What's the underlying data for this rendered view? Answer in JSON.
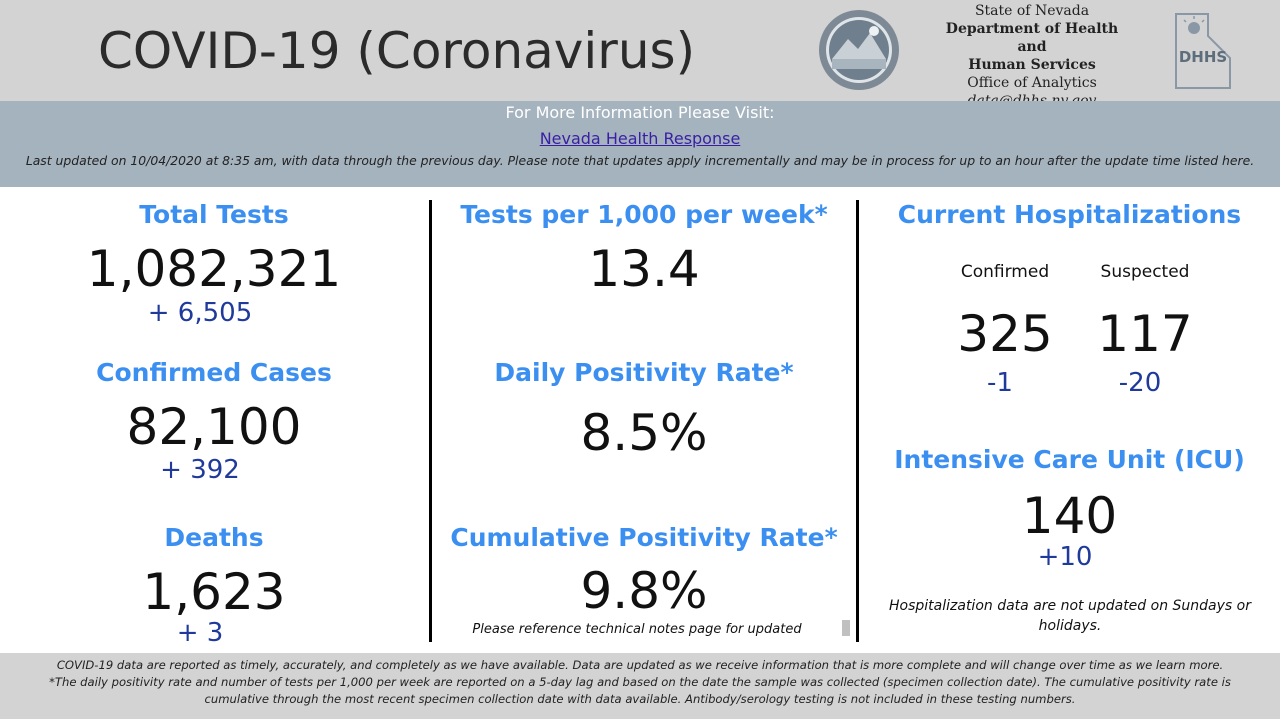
{
  "header": {
    "title": "COVID-19 (Coronavirus)",
    "agency": {
      "line1": "State of Nevada",
      "line2": "Department of Health and",
      "line3": "Human Services",
      "line4": "Office of Analytics",
      "line5": "data@dhhs.nv.gov"
    },
    "seal_icon": "nevada-state-seal",
    "logo_icon": "dhhs-logo",
    "logo_text": "DHHS"
  },
  "info": {
    "heading": "For More Information Please Visit:",
    "link_text": "Nevada Health Response",
    "update_note": "Last updated on 10/04/2020 at 8:35 am, with data through the previous day.  Please note that updates apply incrementally and may be in process for up to an hour after the update time listed here."
  },
  "left": {
    "total_tests": {
      "label": "Total Tests",
      "value": "1,082,321",
      "delta": "+  6,505"
    },
    "confirmed_cases": {
      "label": "Confirmed Cases",
      "value": "82,100",
      "delta": "+ 392"
    },
    "deaths": {
      "label": "Deaths",
      "value": "1,623",
      "delta": "+ 3"
    }
  },
  "middle": {
    "tests_per_1000": {
      "label": "Tests per 1,000 per week*",
      "value": "13.4"
    },
    "daily_positivity": {
      "label": "Daily Positivity Rate*",
      "value": "8.5%"
    },
    "cumulative_positivity": {
      "label": "Cumulative Positivity Rate*",
      "value": "9.8%",
      "note": "Please reference technical notes page for updated"
    }
  },
  "right": {
    "hospitalizations": {
      "label": "Current Hospitalizations",
      "confirmed_label": "Confirmed",
      "suspected_label": "Suspected",
      "confirmed_value": "325",
      "suspected_value": "117",
      "confirmed_delta": "-1",
      "suspected_delta": "-20"
    },
    "icu": {
      "label": "Intensive Care Unit (ICU)",
      "value": "140",
      "delta": "+10"
    },
    "note": "Hospitalization data are not updated on Sundays or holidays."
  },
  "footer": {
    "line1": "COVID-19 data are reported as timely, accurately, and completely as we have available.  Data are updated as we receive information that is more complete and will change over time as we learn more.",
    "line2": "*The daily positivity rate and number of tests per 1,000 per week are reported on a 5-day lag and based on the date the sample was collected (specimen collection date).  The cumulative positivity rate is",
    "line3": "cumulative through the most recent specimen collection date with data available.  Antibody/serology testing is not included in these testing numbers."
  },
  "colors": {
    "label_blue": "#3b8ff0",
    "delta_blue": "#1f3a9a",
    "header_gray": "#d3d3d3",
    "info_bar": "#a5b3bf"
  }
}
